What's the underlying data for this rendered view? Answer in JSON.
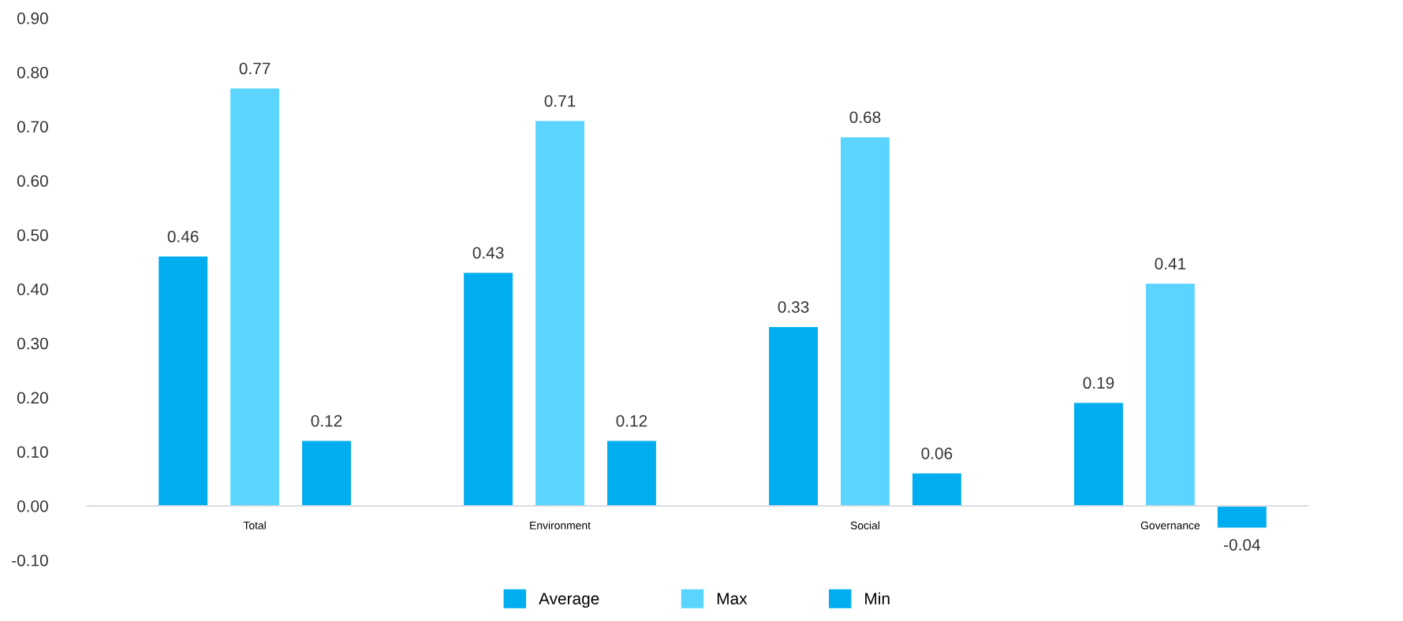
{
  "chart_data": {
    "type": "bar",
    "categories": [
      "Total",
      "Environment",
      "Social",
      "Governance"
    ],
    "series": [
      {
        "name": "Average",
        "color": "#00aeef",
        "values": [
          0.46,
          0.43,
          0.33,
          0.19
        ],
        "value_labels": [
          "0.46",
          "0.43",
          "0.33",
          "0.19"
        ]
      },
      {
        "name": "Max",
        "color": "#5bd5ff",
        "values": [
          0.77,
          0.71,
          0.68,
          0.41
        ],
        "value_labels": [
          "0.77",
          "0.71",
          "0.68",
          "0.41"
        ]
      },
      {
        "name": "Min",
        "color": "#00aeef",
        "values": [
          0.12,
          0.12,
          0.06,
          -0.04
        ],
        "value_labels": [
          "0.12",
          "0.12",
          "0.06",
          "-0.04"
        ]
      }
    ],
    "ylim": [
      -0.1,
      0.9
    ],
    "yticks": [
      {
        "value": -0.1,
        "label": "-0.10"
      },
      {
        "value": 0,
        "label": "0.00"
      },
      {
        "value": 0.1,
        "label": "0.10"
      },
      {
        "value": 0.2,
        "label": "0.20"
      },
      {
        "value": 0.3,
        "label": "0.30"
      },
      {
        "value": 0.4,
        "label": "0.40"
      },
      {
        "value": 0.5,
        "label": "0.50"
      },
      {
        "value": 0.6,
        "label": "0.60"
      },
      {
        "value": 0.7,
        "label": "0.70"
      },
      {
        "value": 0.8,
        "label": "0.80"
      },
      {
        "value": 0.9,
        "label": "0.90"
      }
    ],
    "grid": false,
    "legend": "bottom"
  }
}
